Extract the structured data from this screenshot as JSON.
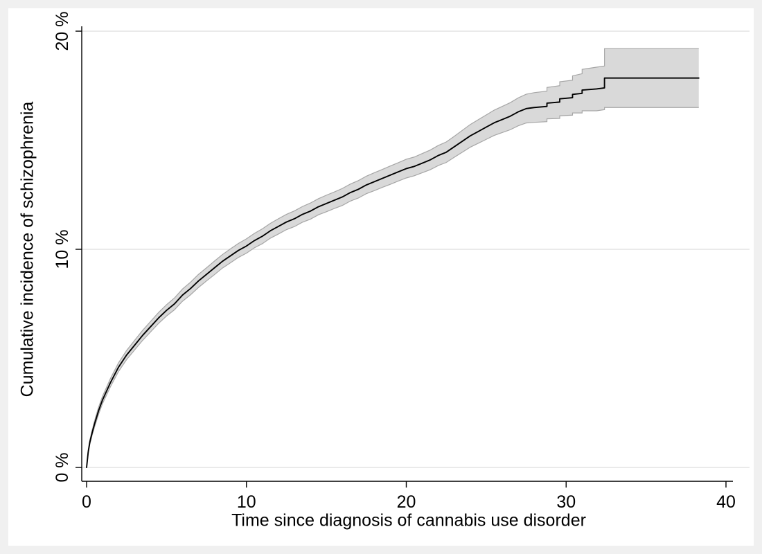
{
  "chart_data": {
    "type": "line",
    "title": "",
    "xlabel": "Time since diagnosis of cannabis use disorder",
    "ylabel": "Cumulative incidence of schizophrenia",
    "xlim": [
      0,
      40
    ],
    "ylim": [
      0,
      20
    ],
    "x_ticks": [
      0,
      10,
      20,
      30,
      40
    ],
    "x_tick_labels": [
      "0",
      "10",
      "20",
      "30",
      "40"
    ],
    "y_ticks": [
      0,
      10,
      20
    ],
    "y_tick_labels": [
      "0 %",
      "10 %",
      "20 %"
    ],
    "grid": "horizontal",
    "legend": "none",
    "series": [
      {
        "name": "cumulative-incidence-curve",
        "color": "#000000",
        "band": "confidence-band"
      }
    ],
    "x": [
      0,
      0.1,
      0.2,
      0.35,
      0.5,
      0.75,
      1,
      1.25,
      1.5,
      2,
      2.5,
      3,
      3.5,
      4,
      4.5,
      5,
      5.5,
      6,
      6.5,
      7,
      7.5,
      8,
      8.5,
      9,
      9.5,
      10,
      10.5,
      11,
      11.5,
      12,
      12.5,
      13,
      13.5,
      14,
      14.5,
      15,
      15.5,
      16,
      16.5,
      17,
      17.5,
      18,
      18.5,
      19,
      19.5,
      20,
      20.5,
      21,
      21.5,
      22,
      22.5,
      23,
      23.5,
      24,
      24.5,
      25,
      25.5,
      26,
      26.5,
      27,
      27.5,
      28,
      28.8,
      28.8,
      29.6,
      29.6,
      30.4,
      30.4,
      31,
      31,
      31.9,
      32.4,
      32.4,
      38.3
    ],
    "y": [
      0,
      0.7,
      1.15,
      1.6,
      2,
      2.6,
      3.1,
      3.5,
      3.9,
      4.6,
      5.15,
      5.6,
      6.05,
      6.45,
      6.85,
      7.2,
      7.5,
      7.9,
      8.2,
      8.55,
      8.85,
      9.15,
      9.45,
      9.7,
      9.95,
      10.15,
      10.4,
      10.6,
      10.85,
      11.05,
      11.25,
      11.4,
      11.6,
      11.75,
      11.95,
      12.1,
      12.25,
      12.4,
      12.6,
      12.75,
      12.95,
      13.1,
      13.25,
      13.4,
      13.55,
      13.7,
      13.8,
      13.95,
      14.1,
      14.3,
      14.45,
      14.7,
      14.95,
      15.2,
      15.4,
      15.6,
      15.8,
      15.95,
      16.1,
      16.3,
      16.45,
      16.5,
      16.55,
      16.7,
      16.75,
      16.9,
      16.95,
      17.1,
      17.15,
      17.3,
      17.35,
      17.4,
      17.85,
      17.85
    ],
    "ci_lower": [
      0,
      0.62,
      1.05,
      1.48,
      1.86,
      2.44,
      2.93,
      3.32,
      3.71,
      4.4,
      4.94,
      5.38,
      5.82,
      6.21,
      6.6,
      6.94,
      7.23,
      7.62,
      7.91,
      8.25,
      8.55,
      8.84,
      9.14,
      9.38,
      9.63,
      9.82,
      10.07,
      10.26,
      10.51,
      10.7,
      10.9,
      11.04,
      11.24,
      11.38,
      11.58,
      11.72,
      11.87,
      12.01,
      12.21,
      12.35,
      12.55,
      12.69,
      12.84,
      12.98,
      13.13,
      13.27,
      13.37,
      13.51,
      13.65,
      13.84,
      13.98,
      14.22,
      14.45,
      14.68,
      14.86,
      15.04,
      15.22,
      15.35,
      15.48,
      15.66,
      15.79,
      15.82,
      15.85,
      15.98,
      16,
      16.12,
      16.15,
      16.25,
      16.25,
      16.35,
      16.35,
      16.4,
      16.5,
      16.5
    ],
    "ci_upper": [
      0,
      0.78,
      1.25,
      1.72,
      2.14,
      2.76,
      3.27,
      3.68,
      4.09,
      4.8,
      5.36,
      5.82,
      6.28,
      6.69,
      7.1,
      7.46,
      7.77,
      8.18,
      8.49,
      8.85,
      9.15,
      9.46,
      9.76,
      10.02,
      10.27,
      10.48,
      10.73,
      10.94,
      11.19,
      11.4,
      11.6,
      11.76,
      11.96,
      12.12,
      12.32,
      12.48,
      12.63,
      12.79,
      12.99,
      13.15,
      13.35,
      13.51,
      13.66,
      13.82,
      13.97,
      14.13,
      14.23,
      14.39,
      14.55,
      14.76,
      14.92,
      15.18,
      15.45,
      15.72,
      15.94,
      16.16,
      16.38,
      16.55,
      16.72,
      16.94,
      17.11,
      17.18,
      17.25,
      17.42,
      17.5,
      17.68,
      17.75,
      17.95,
      18.05,
      18.25,
      18.35,
      18.4,
      19.2,
      19.2
    ]
  },
  "colors": {
    "background": "#f0f0f0",
    "plot_background": "#ffffff",
    "grid": "#e3e3e3",
    "axis": "#000000",
    "line": "#000000",
    "band_fill": "#d9d9d9",
    "band_edge": "#a6a6a6",
    "text": "#000000"
  }
}
